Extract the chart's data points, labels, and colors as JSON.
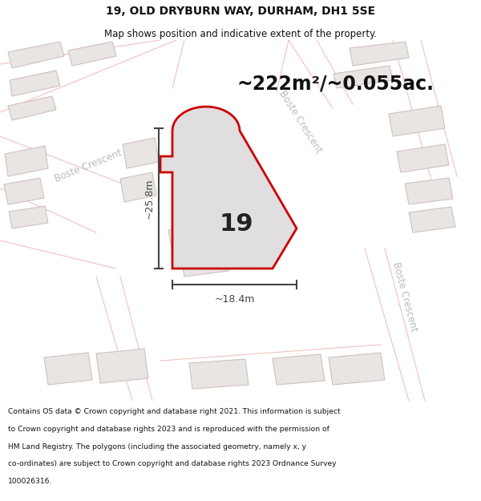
{
  "title_line1": "19, OLD DRYBURN WAY, DURHAM, DH1 5SE",
  "title_line2": "Map shows position and indicative extent of the property.",
  "area_text": "~222m²/~0.055ac.",
  "plot_number": "19",
  "dim_v": "~25.8m",
  "dim_h": "~18.4m",
  "footer_lines": [
    "Contains OS data © Crown copyright and database right 2021. This information is subject",
    "to Crown copyright and database rights 2023 and is reproduced with the permission of",
    "HM Land Registry. The polygons (including the associated geometry, namely x, y",
    "co-ordinates) are subject to Crown copyright and database rights 2023 Ordnance Survey",
    "100026316."
  ],
  "map_bg": "#f8f7f5",
  "header_bg": "#ffffff",
  "footer_bg": "#ffffff",
  "plot_fill": "#e0dede",
  "plot_edge": "#cc0000",
  "road_line": "#f0b0b0",
  "bldg_fill": "#e8e5e2",
  "bldg_edge": "#d0c0c0",
  "road_fill": "#ffffff",
  "street_label_color": "#aaaaaa",
  "dim_color": "#444444",
  "text_color": "#111111",
  "road_label_color": "#bbbbbb"
}
